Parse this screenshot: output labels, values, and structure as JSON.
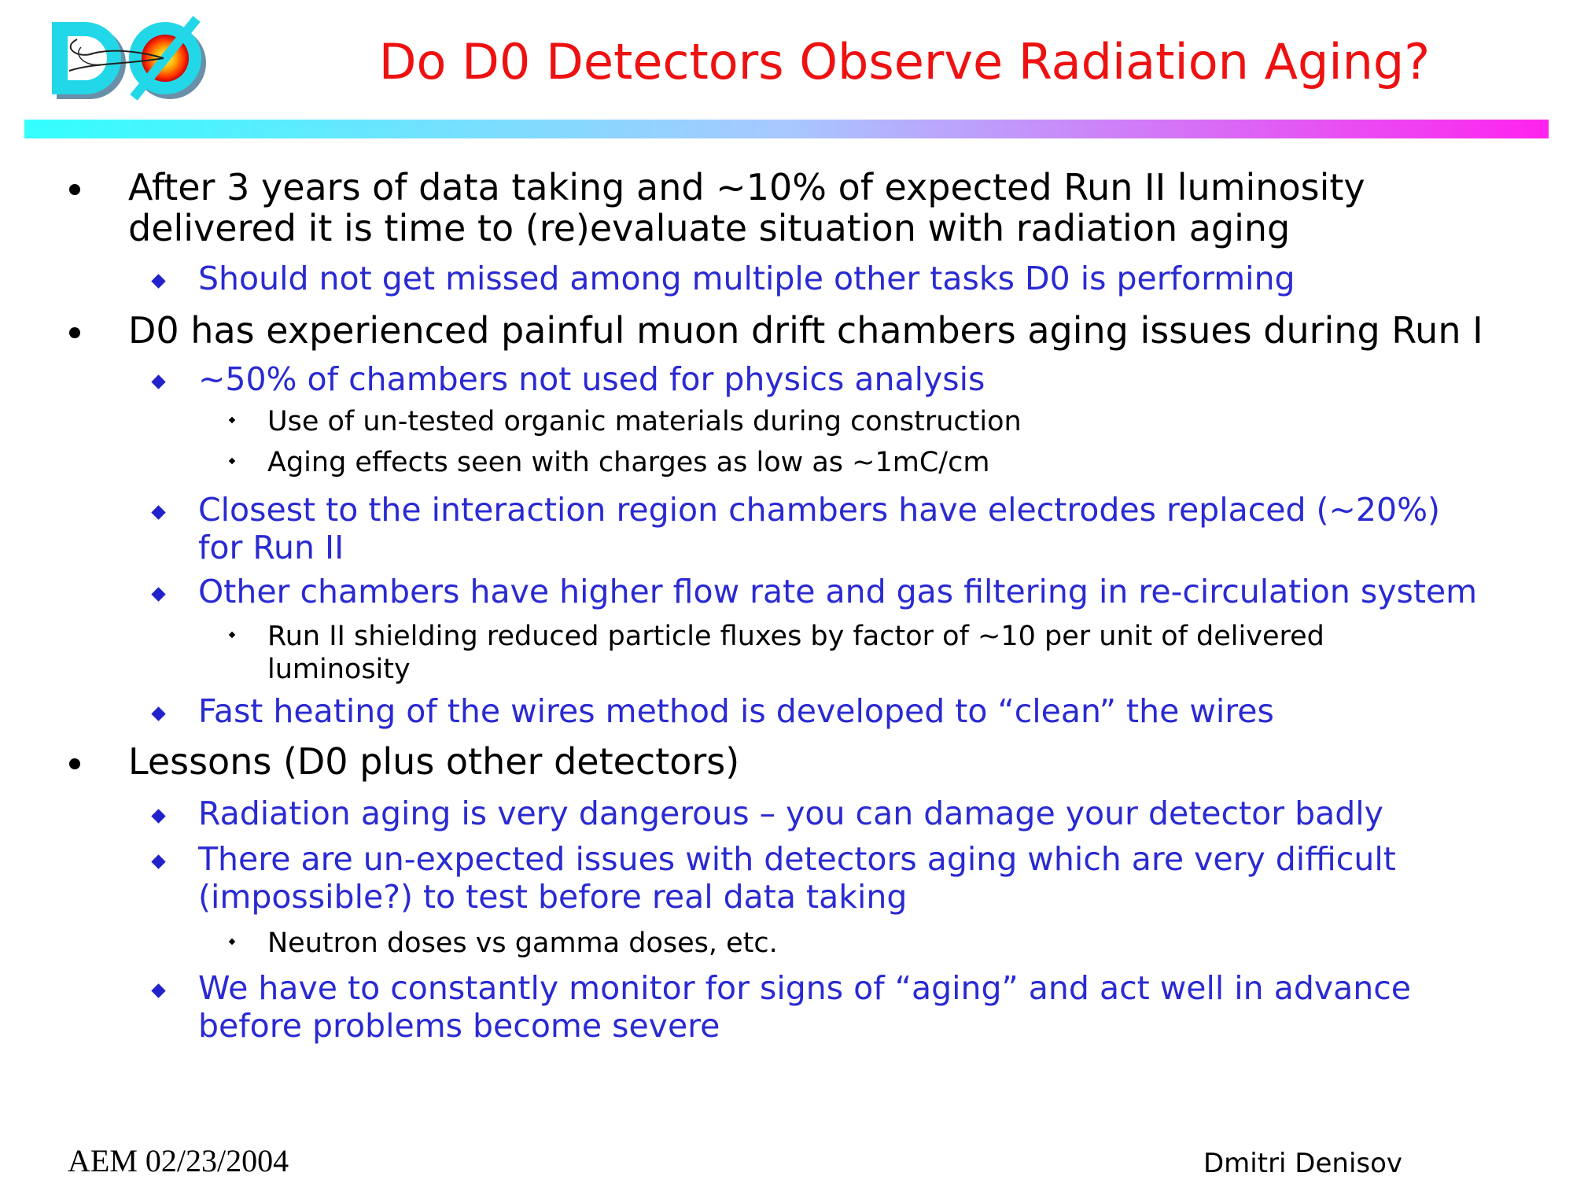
{
  "slide": {
    "title": "Do D0 Detectors Observe Radiation Aging?",
    "logo": {
      "icon": "d0-experiment-logo-icon",
      "text": "DØ"
    },
    "colors": {
      "title": "#ee1111",
      "level1_text": "#000000",
      "level2_text": "#2a2ad2",
      "rule_gradient": [
        "#33ffff",
        "#a8c8ff",
        "#ff22ee"
      ]
    }
  },
  "bullets": [
    {
      "level": 1,
      "lines": [
        "After 3 years of data taking and ~10% of expected Run II luminosity",
        "delivered it is time to (re)evaluate situation with radiation aging"
      ]
    },
    {
      "level": 2,
      "lines": [
        "Should not get missed among multiple other tasks D0 is performing"
      ]
    },
    {
      "level": 1,
      "lines": [
        "D0 has experienced painful muon drift chambers aging issues during Run I"
      ]
    },
    {
      "level": 2,
      "lines": [
        "~50% of chambers not used for physics analysis"
      ]
    },
    {
      "level": 3,
      "lines": [
        "Use of un-tested organic materials during construction"
      ]
    },
    {
      "level": 3,
      "lines": [
        "Aging effects seen with charges as low as ~1mC/cm"
      ]
    },
    {
      "level": 2,
      "lines": [
        "Closest to the interaction region chambers have electrodes replaced (~20%)",
        "for Run II"
      ]
    },
    {
      "level": 2,
      "lines": [
        "Other chambers have higher flow rate and gas filtering in re-circulation system"
      ]
    },
    {
      "level": 3,
      "lines": [
        "Run II shielding reduced particle fluxes by factor of ~10 per unit of delivered",
        "luminosity"
      ]
    },
    {
      "level": 2,
      "lines": [
        "Fast heating of the wires method is developed to “clean” the wires"
      ]
    },
    {
      "level": 1,
      "lines": [
        "Lessons (D0 plus other detectors)"
      ]
    },
    {
      "level": 2,
      "lines": [
        "Radiation aging is very dangerous – you can damage your detector badly"
      ]
    },
    {
      "level": 2,
      "lines": [
        "There are un-expected issues with detectors aging which are very difficult",
        "(impossible?) to test before real data taking"
      ]
    },
    {
      "level": 3,
      "lines": [
        "Neutron doses vs gamma doses, etc."
      ]
    },
    {
      "level": 2,
      "lines": [
        "We have to constantly monitor for signs of “aging” and act well in advance",
        "before problems become severe"
      ]
    }
  ],
  "footer": {
    "left": "AEM 02/23/2004",
    "right": "Dmitri Denisov"
  }
}
